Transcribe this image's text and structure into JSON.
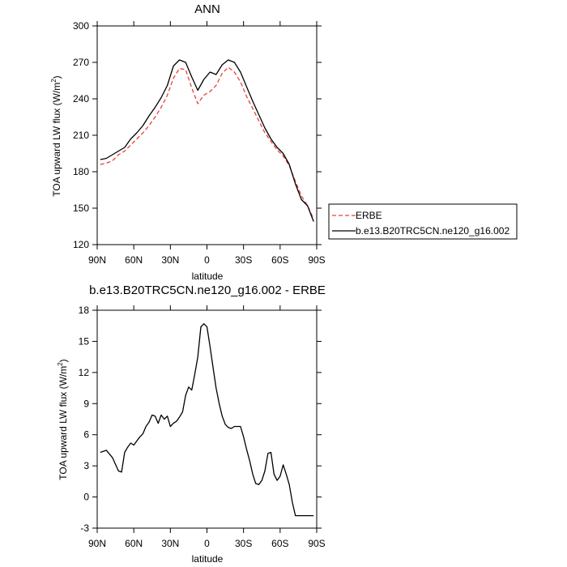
{
  "chart_data": [
    {
      "type": "line",
      "title": "ANN",
      "xlabel": "latitude",
      "ylabel_main": "TOA upward LW flux (W/m",
      "ylabel_sup": "2",
      "ylabel_close": ")",
      "xlim": [
        -90,
        90
      ],
      "ylim": [
        120,
        300
      ],
      "xticks": [
        -90,
        -60,
        -30,
        0,
        30,
        60,
        90
      ],
      "xtick_labels": [
        "90N",
        "60N",
        "30N",
        "0",
        "30S",
        "60S",
        "90S"
      ],
      "yticks": [
        120,
        150,
        180,
        210,
        240,
        270,
        300
      ],
      "ytick_labels": [
        "120",
        "150",
        "180",
        "210",
        "240",
        "270",
        "300"
      ],
      "grid": false,
      "legend_placement": "outside-right",
      "series": [
        {
          "name": "ERBE",
          "color": "#e8413a",
          "dashed": true,
          "x": [
            -87.5,
            -82.5,
            -77.5,
            -72.5,
            -67.5,
            -62.5,
            -57.5,
            -52.5,
            -47.5,
            -42.5,
            -37.5,
            -32.5,
            -27.5,
            -22.5,
            -17.5,
            -12.5,
            -7.5,
            -2.5,
            2.5,
            7.5,
            12.5,
            17.5,
            22.5,
            27.5,
            32.5,
            37.5,
            42.5,
            47.5,
            52.5,
            57.5,
            62.5,
            67.5,
            72.5,
            77.5,
            82.5,
            87.5
          ],
          "y": [
            186,
            187,
            189,
            194,
            197,
            202,
            207,
            212,
            218,
            225,
            233,
            243,
            257,
            265,
            264,
            249,
            236,
            243,
            246,
            251,
            261,
            266,
            262,
            254,
            242,
            232,
            222,
            212,
            205,
            198,
            193,
            185,
            172,
            160,
            152,
            141
          ]
        },
        {
          "name": "b.e13.B20TRC5CN.ne120_g16.002",
          "color": "#000000",
          "dashed": false,
          "x": [
            -87.5,
            -82.5,
            -77.5,
            -72.5,
            -67.5,
            -62.5,
            -57.5,
            -52.5,
            -47.5,
            -42.5,
            -37.5,
            -32.5,
            -27.5,
            -22.5,
            -17.5,
            -12.5,
            -7.5,
            -2.5,
            2.5,
            7.5,
            12.5,
            17.5,
            22.5,
            27.5,
            32.5,
            37.5,
            42.5,
            47.5,
            52.5,
            57.5,
            62.5,
            67.5,
            72.5,
            77.5,
            82.5,
            87.5
          ],
          "y": [
            190,
            191,
            194,
            197,
            200,
            207,
            212,
            218,
            226,
            233,
            241,
            251,
            267,
            272,
            270,
            258,
            247,
            256,
            262,
            260,
            268,
            272,
            270,
            262,
            250,
            238,
            227,
            216,
            207,
            200,
            195,
            186,
            170,
            157,
            152,
            139
          ]
        }
      ]
    },
    {
      "type": "line",
      "title": "b.e13.B20TRC5CN.ne120_g16.002 - ERBE",
      "xlabel": "latitude",
      "ylabel_main": "TOA upward LW flux (W/m",
      "ylabel_sup": "2",
      "ylabel_close": ")",
      "xlim": [
        -90,
        90
      ],
      "ylim": [
        -3,
        18
      ],
      "xticks": [
        -90,
        -60,
        -30,
        0,
        30,
        60,
        90
      ],
      "xtick_labels": [
        "90N",
        "60N",
        "30N",
        "0",
        "30S",
        "60S",
        "90S"
      ],
      "yticks": [
        -3,
        0,
        3,
        6,
        9,
        12,
        15,
        18
      ],
      "ytick_labels": [
        "-3",
        "0",
        "3",
        "6",
        "9",
        "12",
        "15",
        "18"
      ],
      "grid": false,
      "series": [
        {
          "color": "#000000",
          "dashed": false,
          "x": [
            -87.5,
            -82.5,
            -77.5,
            -72.5,
            -70,
            -67.5,
            -65,
            -62.5,
            -60,
            -57.5,
            -55,
            -52.5,
            -50,
            -47.5,
            -45,
            -42.5,
            -40,
            -37.5,
            -35,
            -32.5,
            -30,
            -27.5,
            -25,
            -22.5,
            -20,
            -17.5,
            -15,
            -12.5,
            -10,
            -7.5,
            -5,
            -2.5,
            0,
            2.5,
            5,
            7.5,
            10,
            12.5,
            15,
            17.5,
            20,
            22.5,
            25,
            27.5,
            30,
            32.5,
            35,
            37.5,
            40,
            42.5,
            45,
            47.5,
            50,
            52.5,
            55,
            57.5,
            60,
            62.5,
            65,
            67.5,
            70,
            72.5,
            75,
            77.5,
            80,
            82.5,
            85,
            87.5
          ],
          "y": [
            4.3,
            4.5,
            3.8,
            2.5,
            2.4,
            4.3,
            4.8,
            5.2,
            5.0,
            5.4,
            5.8,
            6.1,
            6.8,
            7.2,
            7.9,
            7.8,
            7.1,
            7.9,
            7.5,
            7.8,
            6.8,
            7.1,
            7.3,
            7.7,
            8.2,
            9.8,
            10.6,
            10.3,
            11.8,
            13.5,
            16.4,
            16.7,
            16.4,
            14.5,
            12.5,
            10.5,
            9.0,
            7.8,
            7.0,
            6.7,
            6.6,
            6.8,
            6.8,
            6.8,
            5.8,
            4.6,
            3.5,
            2.2,
            1.3,
            1.2,
            1.6,
            2.5,
            4.2,
            4.3,
            2.2,
            1.6,
            2.0,
            3.1,
            2.2,
            1.2,
            -0.5,
            -1.8,
            -1.8,
            -1.8,
            -1.8,
            -1.8,
            -1.8,
            -1.8
          ]
        }
      ]
    }
  ]
}
